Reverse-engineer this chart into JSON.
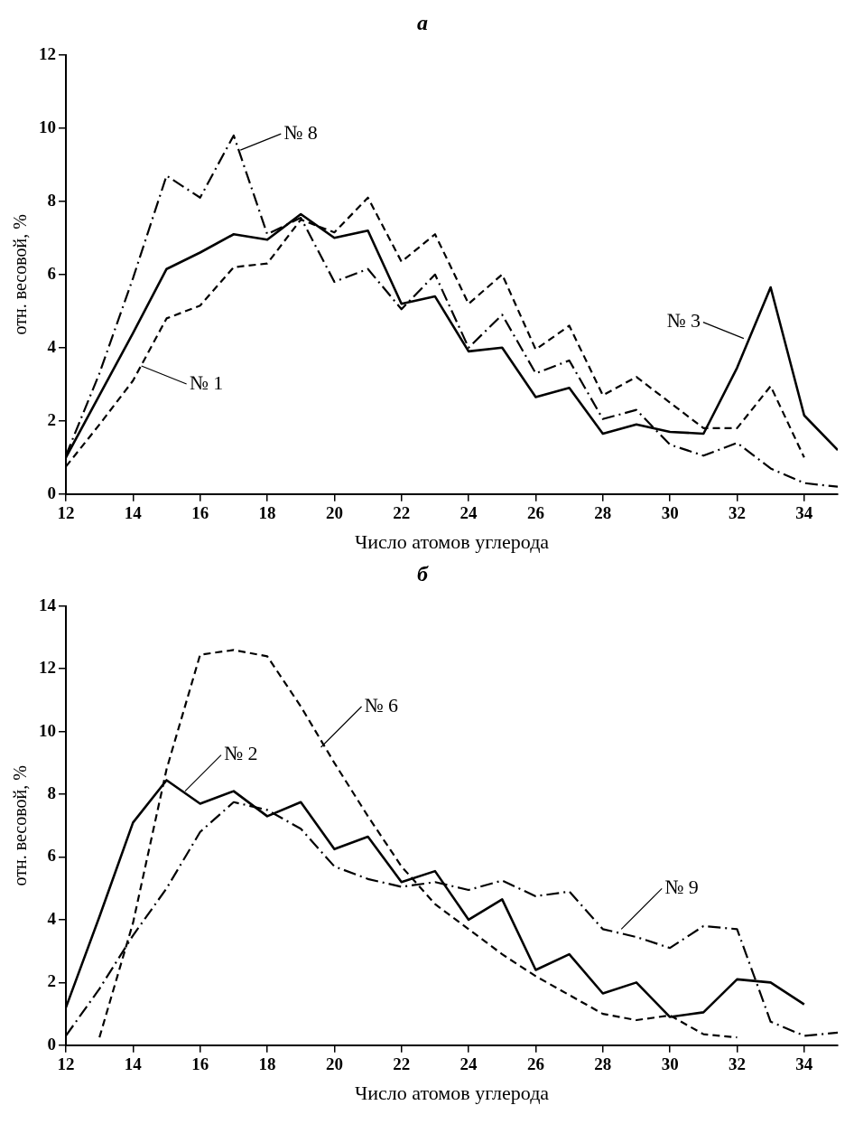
{
  "chart_data": [
    {
      "type": "line",
      "title": "а",
      "xlabel": "Число атомов углерода",
      "ylabel": "отн. весовой, %",
      "xlim": [
        12,
        35
      ],
      "xticks": [
        12,
        14,
        16,
        18,
        20,
        22,
        24,
        26,
        28,
        30,
        32,
        34
      ],
      "ylim": [
        0,
        12
      ],
      "yticks": [
        0,
        2,
        4,
        6,
        8,
        10,
        12
      ],
      "grid": false,
      "legend": false,
      "series": [
        {
          "color": "#000000",
          "line_style": "solid",
          "x": [
            12,
            13,
            14,
            15,
            16,
            17,
            18,
            19,
            20,
            21,
            22,
            23,
            24,
            25,
            26,
            27,
            28,
            29,
            30,
            31,
            32,
            33,
            34,
            35
          ],
          "values": [
            1.0,
            2.7,
            4.4,
            6.15,
            6.6,
            7.1,
            6.95,
            7.65,
            7.0,
            7.2,
            5.2,
            5.4,
            3.9,
            4.0,
            2.65,
            2.9,
            1.65,
            1.9,
            1.7,
            1.65,
            3.45,
            5.65,
            2.15,
            1.2
          ]
        },
        {
          "color": "#000000",
          "line_style": "dashed",
          "x": [
            12,
            13,
            14,
            15,
            16,
            17,
            18,
            19,
            20,
            21,
            22,
            23,
            24,
            25,
            26,
            27,
            28,
            29,
            30,
            31,
            32,
            33,
            34
          ],
          "values": [
            0.75,
            1.9,
            3.1,
            4.8,
            5.15,
            6.2,
            6.3,
            7.5,
            7.15,
            8.1,
            6.35,
            7.1,
            5.2,
            6.0,
            3.95,
            4.6,
            2.7,
            3.2,
            2.5,
            1.8,
            1.8,
            2.95,
            1.0
          ]
        },
        {
          "color": "#000000",
          "line_style": "dashdot",
          "x": [
            12,
            13,
            14,
            15,
            16,
            17,
            18,
            19,
            20,
            21,
            22,
            23,
            24,
            25,
            26,
            27,
            28,
            29,
            30,
            31,
            32,
            33,
            34,
            35
          ],
          "values": [
            1.05,
            3.3,
            5.9,
            8.7,
            8.1,
            9.8,
            7.1,
            7.55,
            5.8,
            6.15,
            5.05,
            6.0,
            4.0,
            4.9,
            3.3,
            3.65,
            2.05,
            2.3,
            1.35,
            1.05,
            1.4,
            0.7,
            0.3,
            0.2
          ]
        }
      ],
      "annotations": [
        {
          "text": "№ 8",
          "x": 17.2,
          "y": 9.4
        },
        {
          "text": "№ 1",
          "x": 14.25,
          "y": 3.5
        },
        {
          "text": "№ 3",
          "x": 32.2,
          "y": 4.25
        }
      ]
    },
    {
      "type": "line",
      "title": "б",
      "xlabel": "Число атомов углерода",
      "ylabel": "отн. весовой, %",
      "xlim": [
        12,
        35
      ],
      "xticks": [
        12,
        14,
        16,
        18,
        20,
        22,
        24,
        26,
        28,
        30,
        32,
        34
      ],
      "ylim": [
        0,
        14
      ],
      "yticks": [
        0,
        2,
        4,
        6,
        8,
        10,
        12,
        14
      ],
      "grid": false,
      "legend": false,
      "series": [
        {
          "color": "#000000",
          "line_style": "solid",
          "x": [
            12,
            13,
            14,
            15,
            16,
            17,
            18,
            19,
            20,
            21,
            22,
            23,
            24,
            25,
            26,
            27,
            28,
            29,
            30,
            31,
            32,
            33,
            34
          ],
          "values": [
            1.2,
            4.1,
            7.1,
            8.45,
            7.7,
            8.1,
            7.3,
            7.75,
            6.25,
            6.65,
            5.2,
            5.55,
            4.0,
            4.65,
            2.4,
            2.9,
            1.65,
            2.0,
            0.9,
            1.05,
            2.1,
            2.0,
            1.3
          ]
        },
        {
          "color": "#000000",
          "line_style": "dashed",
          "x": [
            13,
            14,
            15,
            16,
            17,
            18,
            19,
            20,
            21,
            22,
            23,
            24,
            25,
            26,
            27,
            28,
            29,
            30,
            31,
            32
          ],
          "values": [
            0.25,
            3.9,
            8.8,
            12.45,
            12.6,
            12.4,
            10.8,
            9.0,
            7.3,
            5.7,
            4.5,
            3.7,
            2.9,
            2.2,
            1.6,
            1.0,
            0.8,
            0.95,
            0.35,
            0.25
          ]
        },
        {
          "color": "#000000",
          "line_style": "dashdot",
          "x": [
            12,
            13,
            14,
            15,
            16,
            17,
            18,
            19,
            20,
            21,
            22,
            23,
            24,
            25,
            26,
            27,
            28,
            29,
            30,
            31,
            32,
            33,
            34,
            35
          ],
          "values": [
            0.3,
            1.8,
            3.5,
            5.0,
            6.8,
            7.75,
            7.5,
            6.9,
            5.7,
            5.3,
            5.05,
            5.2,
            4.95,
            5.25,
            4.75,
            4.9,
            3.7,
            3.45,
            3.1,
            3.8,
            3.7,
            0.75,
            0.3,
            0.4
          ]
        }
      ],
      "annotations": [
        {
          "text": "№ 2",
          "x": 15.55,
          "y": 8.1
        },
        {
          "text": "№ 6",
          "x": 19.6,
          "y": 9.5
        },
        {
          "text": "№ 9",
          "x": 28.55,
          "y": 3.7
        }
      ]
    }
  ]
}
